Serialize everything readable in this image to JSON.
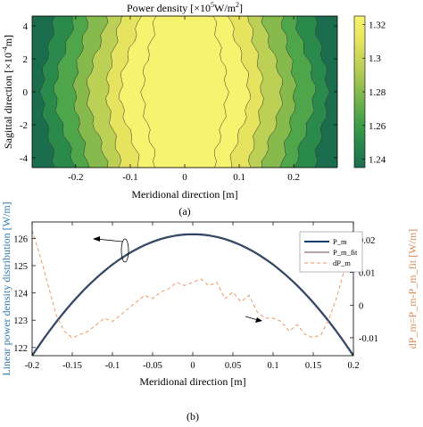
{
  "chart_data": [
    {
      "type": "heatmap",
      "title_prefix": "Power density [×10",
      "title_exp1": "5",
      "title_mid": "W/m",
      "title_exp2": "2",
      "title_suffix": "]",
      "xlabel": "Meridional direction [m]",
      "ylabel_prefix": "Sagittal direction [×10",
      "ylabel_exp": "-4",
      "ylabel_suffix": "m]",
      "xlim": [
        -0.28,
        0.28
      ],
      "ylim": [
        -4.6,
        4.6
      ],
      "x_ticks": [
        -0.2,
        -0.1,
        0,
        0.1,
        0.2
      ],
      "x_tick_labels": [
        "-0.2",
        "-0.1",
        "0",
        "0.1",
        "0.2"
      ],
      "y_ticks": [
        -4,
        -2,
        0,
        2,
        4
      ],
      "y_tick_labels": [
        "-4",
        "-2",
        "0",
        "2",
        "4"
      ],
      "colorbar": {
        "range": [
          1.235,
          1.325
        ],
        "ticks": [
          1.24,
          1.26,
          1.28,
          1.3,
          1.32
        ],
        "tick_labels": [
          "1.24",
          "1.26",
          "1.28",
          "1.3",
          "1.32"
        ],
        "colors": [
          "#1b6e4d",
          "#2a8a4c",
          "#4ea54a",
          "#86ba4c",
          "#bdd056",
          "#e6e35f",
          "#f6f46e"
        ]
      },
      "contour_half_widths_m": [
        0.25,
        0.22,
        0.19,
        0.16,
        0.13,
        0.1,
        0.065
      ],
      "caption": "(a)"
    },
    {
      "type": "line",
      "xlabel": "Meridional direction [m]",
      "ylabel": "Linear power density distribution [W/m]",
      "ylabel_right": "dP_m=P_m-P_m_fit [W/m]",
      "xlim": [
        -0.2,
        0.2
      ],
      "ylim": [
        121.7,
        126.6
      ],
      "ylim_right": [
        -0.0155,
        0.0255
      ],
      "x_ticks": [
        -0.2,
        -0.15,
        -0.1,
        -0.05,
        0,
        0.05,
        0.1,
        0.15,
        0.2
      ],
      "x_tick_labels": [
        "-0.2",
        "-0.15",
        "-0.1",
        "-0.05",
        "0",
        "0.05",
        "0.1",
        "0.15",
        "0.2"
      ],
      "y_ticks": [
        122,
        123,
        124,
        125,
        126
      ],
      "y_tick_labels": [
        "122",
        "123",
        "124",
        "125",
        "126"
      ],
      "y_right_ticks": [
        -0.01,
        0,
        0.01,
        0.02
      ],
      "y_right_tick_labels": [
        "-0.01",
        "0",
        "0.01",
        "0.02"
      ],
      "legend": [
        "P_m",
        "P_m_fit",
        "dP_m"
      ],
      "legend_position": "top-right",
      "series": [
        {
          "name": "P_m",
          "color": "#0d3d6e",
          "x": [
            -0.2,
            -0.175,
            -0.15,
            -0.125,
            -0.1,
            -0.075,
            -0.05,
            -0.025,
            0,
            0.025,
            0.05,
            0.075,
            0.1,
            0.125,
            0.15,
            0.175,
            0.2
          ],
          "y": [
            121.7,
            122.39,
            123.03,
            123.62,
            124.14,
            124.61,
            125.03,
            125.38,
            126.15,
            125.38,
            125.03,
            124.61,
            124.14,
            123.62,
            123.03,
            122.39,
            121.7
          ]
        },
        {
          "name": "P_m_fit",
          "color": "#6b4a4a",
          "x": [
            -0.2,
            -0.175,
            -0.15,
            -0.125,
            -0.1,
            -0.075,
            -0.05,
            -0.025,
            0,
            0.025,
            0.05,
            0.075,
            0.1,
            0.125,
            0.15,
            0.175,
            0.2
          ],
          "y": [
            121.7,
            122.39,
            123.03,
            123.62,
            124.14,
            124.61,
            125.03,
            125.38,
            126.15,
            125.38,
            125.03,
            124.61,
            124.14,
            123.62,
            123.03,
            122.39,
            121.7
          ]
        },
        {
          "name": "dP_m",
          "color": "#e89a6a",
          "axis": "right",
          "x": [
            -0.2,
            -0.19,
            -0.18,
            -0.17,
            -0.16,
            -0.15,
            -0.14,
            -0.13,
            -0.12,
            -0.11,
            -0.1,
            -0.09,
            -0.08,
            -0.07,
            -0.06,
            -0.05,
            -0.04,
            -0.03,
            -0.02,
            -0.01,
            0,
            0.01,
            0.02,
            0.03,
            0.04,
            0.05,
            0.06,
            0.07,
            0.08,
            0.09,
            0.1,
            0.11,
            0.12,
            0.13,
            0.14,
            0.15,
            0.16,
            0.17,
            0.18,
            0.19,
            0.2
          ],
          "y": [
            0.023,
            0.015,
            0.006,
            -0.003,
            -0.008,
            -0.01,
            -0.009,
            -0.008,
            -0.006,
            -0.004,
            -0.005,
            -0.003,
            -0.001,
            0.001,
            0.003,
            0.002,
            0.004,
            0.005,
            0.007,
            0.006,
            0.007,
            0.008,
            0.006,
            0.007,
            0.002,
            0.004,
            0.001,
            0.003,
            -0.002,
            -0.004,
            -0.004,
            -0.005,
            -0.008,
            -0.006,
            -0.009,
            -0.01,
            -0.009,
            -0.004,
            0.003,
            0.012,
            0.024
          ]
        }
      ],
      "caption": "(b)"
    }
  ]
}
